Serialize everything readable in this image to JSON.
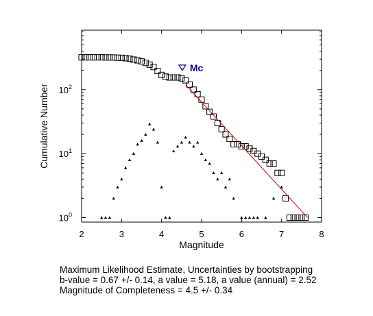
{
  "chart_data": {
    "type": "scatter",
    "xlabel": "Magnitude",
    "ylabel": "Cumulative Number",
    "xlim": [
      2,
      8
    ],
    "ylim_log10": [
      -0.07,
      2.93
    ],
    "scale_y": "log",
    "xticks": [
      "2",
      "3",
      "4",
      "5",
      "6",
      "7",
      "8"
    ],
    "yticks": [
      {
        "base": "10",
        "exp": "0",
        "value": 1
      },
      {
        "base": "10",
        "exp": "1",
        "value": 10
      },
      {
        "base": "10",
        "exp": "2",
        "value": 100
      }
    ],
    "mc_marker": {
      "label": "Mc",
      "x": 4.5,
      "y": 220,
      "color": "#00008B"
    },
    "fit_line": {
      "color": "#cc0000",
      "points": [
        [
          4.6,
          120
        ],
        [
          7.65,
          1.0
        ]
      ]
    },
    "series": [
      {
        "marker": "open-square",
        "x": [
          2.0,
          2.1,
          2.2,
          2.3,
          2.4,
          2.5,
          2.6,
          2.7,
          2.8,
          2.9,
          3.0,
          3.1,
          3.2,
          3.3,
          3.4,
          3.5,
          3.6,
          3.7,
          3.8,
          3.9,
          4.0,
          4.1,
          4.2,
          4.3,
          4.4,
          4.5,
          4.6,
          4.7,
          4.8,
          4.9,
          5.0,
          5.1,
          5.2,
          5.3,
          5.4,
          5.5,
          5.6,
          5.7,
          5.8,
          5.9,
          6.0,
          6.1,
          6.2,
          6.3,
          6.4,
          6.5,
          6.6,
          6.7,
          6.8,
          6.9,
          7.0,
          7.1,
          7.2,
          7.3,
          7.4,
          7.5,
          7.6
        ],
        "y": [
          320,
          320,
          320,
          320,
          320,
          320,
          319,
          319,
          318,
          316,
          314,
          310,
          304,
          295,
          287,
          276,
          262,
          246,
          226,
          196,
          170,
          160,
          155,
          155,
          155,
          150,
          140,
          120,
          100,
          85,
          70,
          55,
          45,
          38,
          30,
          24,
          20,
          17,
          14,
          14,
          13,
          13,
          12,
          11,
          10,
          9,
          8,
          7,
          7,
          5,
          5,
          2,
          1,
          1,
          1,
          1,
          1
        ]
      },
      {
        "marker": "small-triangle",
        "x": [
          2.5,
          2.6,
          2.7,
          2.8,
          2.9,
          3.0,
          3.1,
          3.2,
          3.3,
          3.4,
          3.5,
          3.6,
          3.7,
          3.8,
          3.9,
          4.0,
          4.1,
          4.2,
          4.3,
          4.4,
          4.5,
          4.6,
          4.7,
          4.8,
          4.9,
          5.0,
          5.1,
          5.2,
          5.3,
          5.4,
          5.5,
          5.6,
          5.7,
          5.8,
          6.0,
          6.1,
          6.2,
          6.3,
          6.4,
          6.6,
          6.8,
          7.0
        ],
        "y": [
          1,
          1,
          1,
          2,
          3,
          4,
          6,
          8,
          10,
          14,
          16,
          20,
          29,
          24,
          15,
          3,
          1,
          1,
          11,
          13,
          15,
          18,
          15,
          13,
          15,
          10,
          8,
          7,
          5,
          4,
          5,
          3,
          4,
          2,
          1,
          1,
          1,
          1,
          1,
          1,
          2,
          3
        ]
      }
    ]
  },
  "caption": {
    "line1": "Maximum Likelihood Estimate, Uncertainties by bootstrapping",
    "line2": "b-value = 0.67 +/- 0.14,  a value = 5.18,  a value (annual) = 2.52",
    "line3": "Magnitude of Completeness = 4.5 +/- 0.34"
  }
}
